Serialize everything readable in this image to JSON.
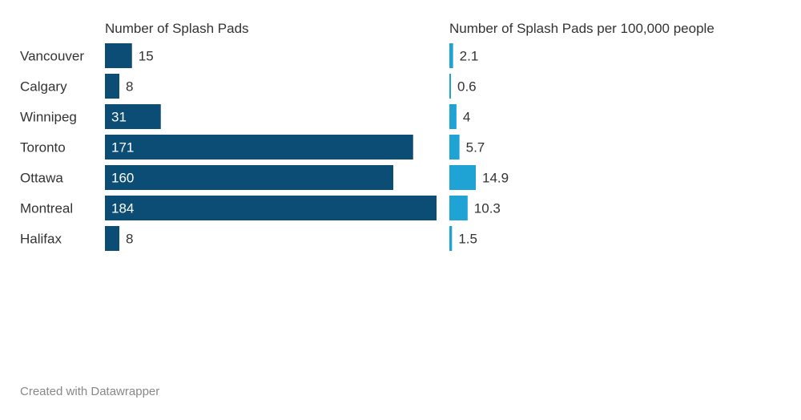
{
  "chart_data": [
    {
      "type": "bar",
      "orientation": "horizontal",
      "title": "Number of Splash Pads",
      "categories": [
        "Vancouver",
        "Calgary",
        "Winnipeg",
        "Toronto",
        "Ottawa",
        "Montreal",
        "Halifax"
      ],
      "values": [
        15,
        8,
        31,
        171,
        160,
        184,
        8
      ],
      "xlim": [
        0,
        184
      ],
      "grid": false,
      "color": "#0b4d75"
    },
    {
      "type": "bar",
      "orientation": "horizontal",
      "title": "Number of Splash Pads per 100,000 people",
      "categories": [
        "Vancouver",
        "Calgary",
        "Winnipeg",
        "Toronto",
        "Ottawa",
        "Montreal",
        "Halifax"
      ],
      "values": [
        2.1,
        0.6,
        4,
        5.7,
        14.9,
        10.3,
        1.5
      ],
      "xlim": [
        0,
        14.9
      ],
      "grid": false,
      "color": "#1fa2d4"
    }
  ],
  "footer": {
    "credit": "Created with Datawrapper"
  }
}
